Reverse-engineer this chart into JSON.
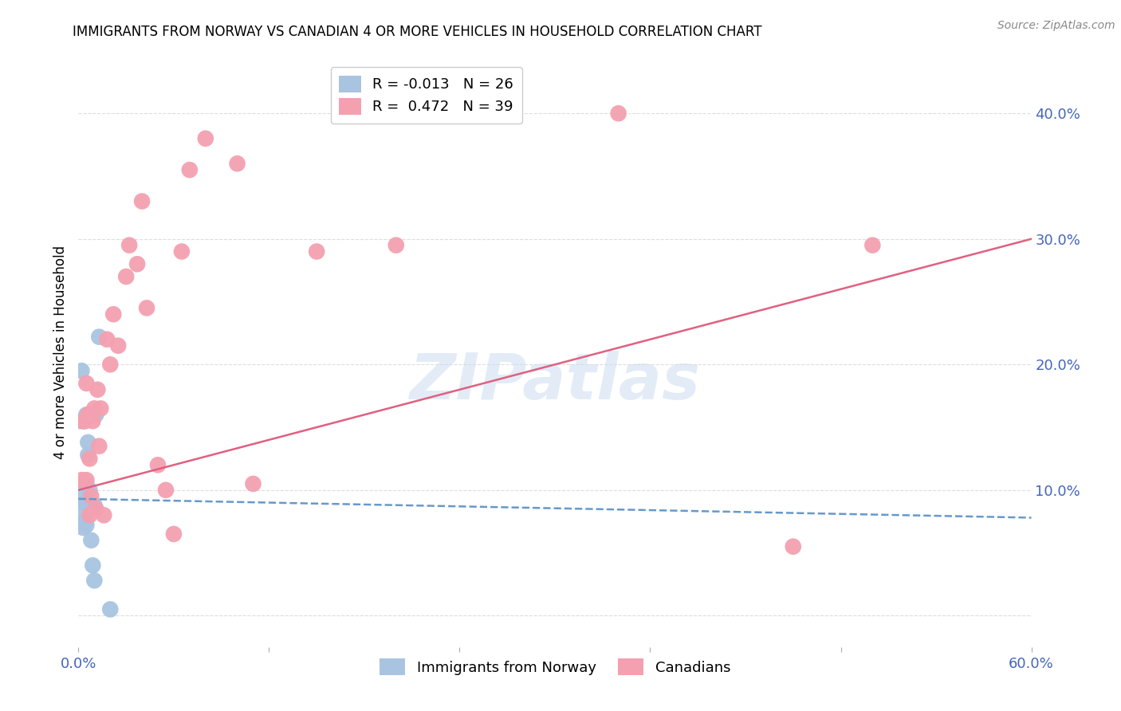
{
  "title": "IMMIGRANTS FROM NORWAY VS CANADIAN 4 OR MORE VEHICLES IN HOUSEHOLD CORRELATION CHART",
  "source": "Source: ZipAtlas.com",
  "ylabel": "4 or more Vehicles in Household",
  "watermark": "ZIPatlas",
  "legend_norway": "Immigrants from Norway",
  "legend_canadians": "Canadians",
  "norway_R": -0.013,
  "norway_N": 26,
  "canadians_R": 0.472,
  "canadians_N": 39,
  "norway_color": "#a8c4e0",
  "canadians_color": "#f4a0b0",
  "norway_line_color": "#6699cc",
  "canadians_line_color": "#e06080",
  "right_axis_color": "#4466bb",
  "right_yticks": [
    0.0,
    0.1,
    0.2,
    0.3,
    0.4
  ],
  "right_ytick_labels": [
    "",
    "10.0%",
    "20.0%",
    "30.0%",
    "40.0%"
  ],
  "xlim": [
    0.0,
    0.6
  ],
  "ylim": [
    -0.025,
    0.445
  ],
  "norway_x": [
    0.001,
    0.002,
    0.002,
    0.003,
    0.003,
    0.003,
    0.004,
    0.004,
    0.004,
    0.005,
    0.005,
    0.005,
    0.005,
    0.006,
    0.006,
    0.006,
    0.007,
    0.007,
    0.008,
    0.008,
    0.009,
    0.01,
    0.01,
    0.011,
    0.013,
    0.02
  ],
  "norway_y": [
    0.155,
    0.195,
    0.1,
    0.155,
    0.082,
    0.07,
    0.155,
    0.09,
    0.075,
    0.16,
    0.105,
    0.09,
    0.072,
    0.138,
    0.128,
    0.088,
    0.1,
    0.088,
    0.085,
    0.06,
    0.04,
    0.028,
    0.088,
    0.16,
    0.222,
    0.005
  ],
  "canadians_x": [
    0.002,
    0.003,
    0.004,
    0.005,
    0.005,
    0.006,
    0.007,
    0.007,
    0.008,
    0.008,
    0.009,
    0.01,
    0.011,
    0.012,
    0.013,
    0.014,
    0.016,
    0.018,
    0.02,
    0.022,
    0.025,
    0.03,
    0.032,
    0.037,
    0.04,
    0.043,
    0.05,
    0.055,
    0.06,
    0.065,
    0.07,
    0.08,
    0.1,
    0.11,
    0.15,
    0.2,
    0.34,
    0.45,
    0.5
  ],
  "canadians_y": [
    0.108,
    0.155,
    0.155,
    0.108,
    0.185,
    0.16,
    0.125,
    0.08,
    0.16,
    0.095,
    0.155,
    0.165,
    0.085,
    0.18,
    0.135,
    0.165,
    0.08,
    0.22,
    0.2,
    0.24,
    0.215,
    0.27,
    0.295,
    0.28,
    0.33,
    0.245,
    0.12,
    0.1,
    0.065,
    0.29,
    0.355,
    0.38,
    0.36,
    0.105,
    0.29,
    0.295,
    0.4,
    0.055,
    0.295
  ],
  "norway_trend_x": [
    0.0,
    0.6
  ],
  "norway_trend_y": [
    0.093,
    0.078
  ],
  "canadians_trend_x": [
    0.0,
    0.6
  ],
  "canadians_trend_y": [
    0.1,
    0.3
  ],
  "background_color": "#ffffff",
  "grid_color": "#dddddd",
  "title_fontsize": 12,
  "axis_fontsize": 13,
  "ylabel_fontsize": 12,
  "legend_fontsize": 13,
  "source_fontsize": 10
}
